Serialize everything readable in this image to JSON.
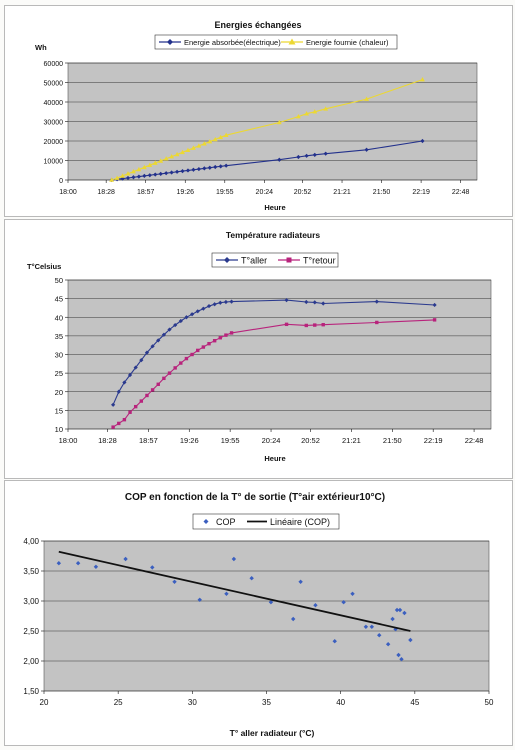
{
  "chart_data": [
    {
      "type": "line",
      "title": "Energies échangées",
      "ylabel": "Wh",
      "xlabel": "Heure",
      "ylim": [
        0,
        60000
      ],
      "yticks": [
        0,
        10000,
        20000,
        30000,
        40000,
        50000,
        60000
      ],
      "xlim": [
        1080,
        1380
      ],
      "xticks": [
        1080,
        1108,
        1137,
        1166,
        1195,
        1224,
        1252,
        1281,
        1310,
        1339,
        1368
      ],
      "xtick_labels": [
        "18:00",
        "18:28",
        "18:57",
        "19:26",
        "19:55",
        "20:24",
        "20:52",
        "21:21",
        "21:50",
        "22:19",
        "22:48"
      ],
      "legend_position": "top",
      "grid": "horizontal",
      "series": [
        {
          "name": "Energie absorbée(électrique)",
          "color": "#23318c",
          "marker": "diamond",
          "x": [
            1112,
            1116,
            1120,
            1124,
            1128,
            1132,
            1136,
            1140,
            1144,
            1148,
            1152,
            1156,
            1160,
            1164,
            1168,
            1172,
            1176,
            1180,
            1184,
            1188,
            1192,
            1196,
            1235,
            1249,
            1255,
            1261,
            1269,
            1299,
            1340
          ],
          "y": [
            0,
            350,
            700,
            1050,
            1400,
            1750,
            2100,
            2450,
            2800,
            3150,
            3500,
            3850,
            4200,
            4550,
            4900,
            5250,
            5600,
            5950,
            6300,
            6650,
            7000,
            7350,
            10400,
            11800,
            12400,
            12900,
            13500,
            15500,
            20000
          ]
        },
        {
          "name": "Energie fournie (chaleur)",
          "color": "#ecd833",
          "marker": "triangle",
          "x": [
            1112,
            1116,
            1120,
            1124,
            1128,
            1132,
            1136,
            1140,
            1144,
            1148,
            1152,
            1156,
            1160,
            1164,
            1168,
            1172,
            1176,
            1180,
            1184,
            1188,
            1192,
            1196,
            1235,
            1249,
            1255,
            1261,
            1269,
            1299,
            1340
          ],
          "y": [
            0,
            1000,
            2100,
            3200,
            4300,
            5400,
            6500,
            7600,
            8700,
            9800,
            10900,
            12000,
            13100,
            14200,
            15300,
            16400,
            17500,
            18600,
            19700,
            20800,
            21900,
            23000,
            29500,
            32500,
            34000,
            35000,
            36500,
            41500,
            51500
          ]
        }
      ]
    },
    {
      "type": "line",
      "title": "Température radiateurs",
      "ylabel": "T°Celsius",
      "xlabel": "Heure",
      "ylim": [
        10,
        50
      ],
      "yticks": [
        10,
        15,
        20,
        25,
        30,
        35,
        40,
        45,
        50
      ],
      "xlim": [
        1080,
        1380
      ],
      "xticks": [
        1080,
        1108,
        1137,
        1166,
        1195,
        1224,
        1252,
        1281,
        1310,
        1339,
        1368
      ],
      "xtick_labels": [
        "18:00",
        "18:28",
        "18:57",
        "19:26",
        "19:55",
        "20:24",
        "20:52",
        "21:21",
        "21:50",
        "22:19",
        "22:48"
      ],
      "legend_position": "top",
      "grid": "horizontal",
      "series": [
        {
          "name": "T°aller",
          "color": "#2b3a8e",
          "marker": "diamond",
          "x": [
            1112,
            1116,
            1120,
            1124,
            1128,
            1132,
            1136,
            1140,
            1144,
            1148,
            1152,
            1156,
            1160,
            1164,
            1168,
            1172,
            1176,
            1180,
            1184,
            1188,
            1192,
            1196,
            1235,
            1249,
            1255,
            1261,
            1299,
            1340
          ],
          "y": [
            16.5,
            20,
            22.5,
            24.5,
            26.5,
            28.5,
            30.5,
            32.2,
            33.8,
            35.3,
            36.7,
            37.9,
            39,
            40,
            40.8,
            41.6,
            42.3,
            43,
            43.5,
            43.9,
            44.1,
            44.2,
            44.6,
            44.1,
            44,
            43.7,
            44.2,
            43.3
          ]
        },
        {
          "name": "T°retour",
          "color": "#b8237c",
          "marker": "square",
          "x": [
            1112,
            1116,
            1120,
            1124,
            1128,
            1132,
            1136,
            1140,
            1144,
            1148,
            1152,
            1156,
            1160,
            1164,
            1168,
            1172,
            1176,
            1180,
            1184,
            1188,
            1192,
            1196,
            1235,
            1249,
            1255,
            1261,
            1299,
            1340
          ],
          "y": [
            10.5,
            11.5,
            12.5,
            14.5,
            16,
            17.5,
            19,
            20.5,
            22,
            23.6,
            25,
            26.4,
            27.7,
            28.9,
            30,
            31.1,
            32,
            32.9,
            33.7,
            34.5,
            35.2,
            35.8,
            38.1,
            37.8,
            37.9,
            38,
            38.6,
            39.3
          ]
        }
      ]
    },
    {
      "type": "scatter",
      "title": "COP en fonction de la T° de sortie (T°air extérieur10°C)",
      "xlabel": "T° aller radiateur (°C)",
      "ylabel": "",
      "xlim": [
        20,
        50
      ],
      "xticks": [
        20,
        25,
        30,
        35,
        40,
        45,
        50
      ],
      "ylim": [
        1.5,
        4.0
      ],
      "yticks": [
        1.5,
        2.0,
        2.5,
        3.0,
        3.5,
        4.0
      ],
      "ytick_labels": [
        "1,50",
        "2,00",
        "2,50",
        "3,00",
        "3,50",
        "4,00"
      ],
      "legend_position": "top",
      "grid": "horizontal",
      "series": [
        {
          "name": "COP",
          "color": "#3b5fbf",
          "marker": "diamond",
          "x": [
            21,
            22.3,
            23.5,
            25.5,
            27.3,
            28.8,
            30.5,
            32.3,
            32.8,
            34,
            35.3,
            36.8,
            37.3,
            38.3,
            39.6,
            40.2,
            40.8,
            41.7,
            42.1,
            42.6,
            43.2,
            43.5,
            43.8,
            43.7,
            43.9,
            44,
            44.1,
            44.3,
            44.7
          ],
          "y": [
            3.63,
            3.63,
            3.57,
            3.7,
            3.56,
            3.32,
            3.02,
            3.12,
            3.7,
            3.38,
            2.98,
            2.7,
            3.32,
            2.93,
            2.33,
            2.98,
            3.12,
            2.57,
            2.57,
            2.43,
            2.28,
            2.7,
            2.85,
            2.53,
            2.1,
            2.85,
            2.03,
            2.8,
            2.35
          ]
        },
        {
          "name": "Linéaire (COP)",
          "type": "trendline",
          "color": "#111111",
          "x": [
            21,
            44.7
          ],
          "y": [
            3.82,
            2.5
          ]
        }
      ]
    }
  ]
}
